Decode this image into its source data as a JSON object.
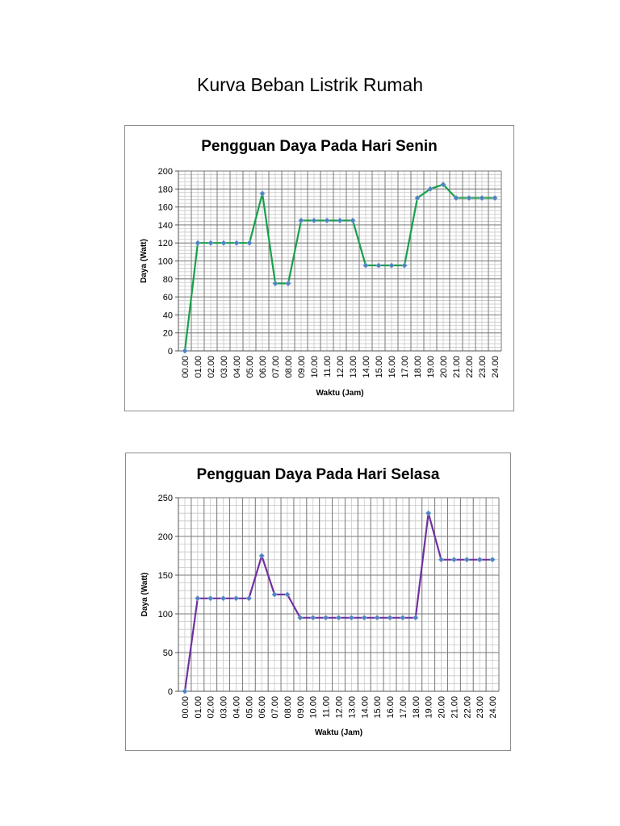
{
  "page": {
    "title": "Kurva Beban Listrik Rumah"
  },
  "chart_data": [
    {
      "type": "line",
      "title": "Pengguan Daya Pada Hari Senin",
      "xlabel": "Waktu (Jam)",
      "ylabel": "Daya (Watt)",
      "categories": [
        "00.00",
        "01.00",
        "02.00",
        "03.00",
        "04.00",
        "05.00",
        "06.00",
        "07.00",
        "08.00",
        "09.00",
        "10.00",
        "11.00",
        "12.00",
        "13.00",
        "14.00",
        "15.00",
        "16.00",
        "17.00",
        "18.00",
        "19.00",
        "20.00",
        "21.00",
        "22.00",
        "23.00",
        "24.00"
      ],
      "series": [
        {
          "values": [
            0,
            120,
            120,
            120,
            120,
            120,
            175,
            75,
            75,
            145,
            145,
            145,
            145,
            145,
            95,
            95,
            95,
            95,
            170,
            180,
            185,
            170,
            170,
            170,
            170
          ]
        }
      ],
      "ylim": [
        0,
        200
      ],
      "yticks": [
        0,
        20,
        40,
        60,
        80,
        100,
        120,
        140,
        160,
        180,
        200
      ],
      "grid": true,
      "legend": "none",
      "line_color": "#17a04a",
      "marker_color": "#4f81bd"
    },
    {
      "type": "line",
      "title": "Pengguan Daya Pada Hari Selasa",
      "xlabel": "Waktu (Jam)",
      "ylabel": "Daya (Watt)",
      "categories": [
        "00.00",
        "01.00",
        "02.00",
        "03.00",
        "04.00",
        "05.00",
        "06.00",
        "07.00",
        "08.00",
        "09.00",
        "10.00",
        "11.00",
        "12.00",
        "13.00",
        "14.00",
        "15.00",
        "16.00",
        "17.00",
        "18.00",
        "19.00",
        "20.00",
        "21.00",
        "22.00",
        "23.00",
        "24.00"
      ],
      "series": [
        {
          "values": [
            0,
            120,
            120,
            120,
            120,
            120,
            175,
            125,
            125,
            95,
            95,
            95,
            95,
            95,
            95,
            95,
            95,
            95,
            95,
            230,
            170,
            170,
            170,
            170,
            170
          ]
        }
      ],
      "ylim": [
        0,
        250
      ],
      "yticks": [
        0,
        50,
        100,
        150,
        200,
        250
      ],
      "grid": true,
      "legend": "none",
      "line_color": "#7030a0",
      "marker_color": "#4f81bd"
    }
  ]
}
